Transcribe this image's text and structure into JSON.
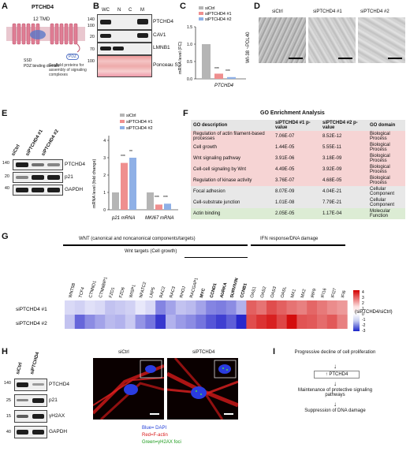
{
  "panels": {
    "A": {
      "letter": "A",
      "protein": "PTCHD4",
      "tmd": "12 TMD",
      "domain1": "SSD",
      "domain2": "PDZ binding domain",
      "pdz": "PDZ",
      "note": "Scaffold proteins for assembly of signaling complexes"
    },
    "B": {
      "letter": "B",
      "columns": [
        "WC",
        "N",
        "C",
        "M"
      ],
      "rows": [
        "PTCHD4",
        "CAV1",
        "LMNB1",
        "Ponceau S"
      ],
      "mw_markers": [
        "140",
        "100",
        "20",
        "70",
        "100"
      ]
    },
    "C": {
      "letter": "C",
      "legend": [
        "siCtrl",
        "siPTCHD4 #1",
        "siPTCHD4 #2"
      ],
      "ylabel": "mRNA level (FC)",
      "xlabel": "PTCHD4",
      "yticks": [
        "0.0",
        "0.5",
        "1.0",
        "1.5"
      ],
      "sig1": "***",
      "sig2": "***"
    },
    "D": {
      "letter": "D",
      "side_label": "WI-38 ~PDL40",
      "images": [
        "siCtrl",
        "siPTCHD4 #1",
        "siPTCHD4 #2"
      ]
    },
    "E": {
      "letter": "E",
      "lanes": [
        "siCtrl",
        "siPTCHD4 #1",
        "siPTCHD4 #2"
      ],
      "rows": [
        "PTCHD4",
        "p21",
        "GAPDH"
      ],
      "mw_markers": [
        "140",
        "20",
        "40"
      ],
      "legend": [
        "siCtrl",
        "siPTCHD4 #1",
        "siPTCHD4 #2"
      ],
      "ylabel": "mRNA level (fold change)",
      "yticks": [
        "0",
        "1",
        "2",
        "3",
        "4"
      ],
      "groups": [
        "p21 mRNA",
        "MKI67 mRNA"
      ],
      "sig": [
        "***",
        "**",
        "***",
        "***"
      ]
    },
    "F": {
      "letter": "F",
      "title": "GO Enrichment Analysis",
      "headers": [
        "GO description",
        "siPTCHD4 #1 p-value",
        "siPTCHD4 #2 p-value",
        "GO domain"
      ],
      "rows": [
        [
          "Regulation of actin filament-based processes",
          "7.06E-07",
          "8.52E-12",
          "Biological Process"
        ],
        [
          "Cell growth",
          "1.44E-05",
          "5.55E-11",
          "Biological Process"
        ],
        [
          "Wnt signaling pathway",
          "3.91E-06",
          "3.18E-09",
          "Biological Process"
        ],
        [
          "Cell-cell signaling by Wnt",
          "4.49E-05",
          "3.92E-09",
          "Biological Process"
        ],
        [
          "Regulation of kinase activity",
          "3.76E-07",
          "4.68E-05",
          "Biological Process"
        ],
        [
          "Focal adhesion",
          "8.07E-09",
          "4.04E-21",
          "Cellular Component"
        ],
        [
          "Cell-substrate junction",
          "1.01E-08",
          "7.79E-21",
          "Cellular Component"
        ],
        [
          "Actin binding",
          "2.05E-05",
          "1.17E-04",
          "Molecular Function"
        ]
      ],
      "row_colors": [
        "#f6d4d4",
        "#f6d4d4",
        "#f6d4d4",
        "#f6d4d4",
        "#f6d4d4",
        "#e8e8e8",
        "#e8e8e8",
        "#dcecd4"
      ]
    },
    "G": {
      "letter": "G",
      "header_wnt": "WNT (canonical and noncanonical components/targets)",
      "header_ifn": "IFN response/DNA damage",
      "subheader": "Wnt targets (Cell growth)",
      "genes": [
        "WNT5B",
        "TCF4",
        "CTNND1",
        "CTNNBIP1",
        "FZD1",
        "FZD6",
        "WISP1",
        "NFATC2",
        "LRP5",
        "RAC2",
        "RAC3",
        "RHOJ",
        "RACGAP1",
        "MYC",
        "CCND1",
        "AURKA",
        "SURVIVIN",
        "CCNB1",
        "OAS1",
        "OAS2",
        "OAS3",
        "OASL",
        "MX1",
        "MX2",
        "IRF9",
        "IFI16",
        "IFI27",
        "IFI6"
      ],
      "bold_genes": [
        "MYC",
        "CCND1",
        "AURKA",
        "SURVIVIN",
        "CCNB1"
      ],
      "rows": [
        "siPTCHD4 #1",
        "siPTCHD4 #2"
      ],
      "colorbar_ticks": [
        "4",
        "3",
        "2",
        "1",
        "0",
        "-1",
        "-2",
        "-3"
      ],
      "colorbar_label": "(siPTCHD4/siCtrl)"
    },
    "H": {
      "letter": "H",
      "lanes": [
        "siCtrl",
        "siPTCHD4"
      ],
      "rows": [
        "PTCHD4",
        "p21",
        "γH2AX",
        "GAPDH"
      ],
      "mw_markers": [
        "140",
        "25",
        "15",
        "40"
      ],
      "images": [
        "siCtrl",
        "siPTCHD4"
      ],
      "legend": [
        {
          "text": "Blue= DAPI",
          "color": "#2340d8"
        },
        {
          "text": "Red=F-actin",
          "color": "#d81b1b"
        },
        {
          "text": "Green=γH2AX foci",
          "color": "#1a9a1a"
        }
      ]
    },
    "I": {
      "letter": "I",
      "step1": "Progressive decline of cell proliferation",
      "step2": "↑ PTCHD4",
      "step3": "Maintenance of protective signaling pathways",
      "step4": "Suppression of DNA damage"
    }
  },
  "chart_data": [
    {
      "type": "bar",
      "panel": "C",
      "categories": [
        "PTCHD4"
      ],
      "series": [
        {
          "name": "siCtrl",
          "values": [
            1.0
          ]
        },
        {
          "name": "siPTCHD4 #1",
          "values": [
            0.15
          ]
        },
        {
          "name": "siPTCHD4 #2",
          "values": [
            0.05
          ]
        }
      ],
      "colors": [
        "#b5b5b5",
        "#ef8f8f",
        "#8fb0e6"
      ],
      "xlabel": "PTCHD4",
      "ylabel": "mRNA level (FC)",
      "ylim": [
        0,
        1.5
      ]
    },
    {
      "type": "bar",
      "panel": "E",
      "categories": [
        "p21 mRNA",
        "MKI67 mRNA"
      ],
      "series": [
        {
          "name": "siCtrl",
          "values": [
            1.0,
            1.0
          ]
        },
        {
          "name": "siPTCHD4 #1",
          "values": [
            2.7,
            0.3
          ]
        },
        {
          "name": "siPTCHD4 #2",
          "values": [
            3.0,
            0.35
          ]
        }
      ],
      "colors": [
        "#b5b5b5",
        "#ef8f8f",
        "#8fb0e6"
      ],
      "ylabel": "mRNA level (fold change)",
      "ylim": [
        0,
        4
      ]
    },
    {
      "type": "heatmap",
      "panel": "G",
      "x": [
        "WNT5B",
        "TCF4",
        "CTNND1",
        "CTNNBIP1",
        "FZD1",
        "FZD6",
        "WISP1",
        "NFATC2",
        "LRP5",
        "RAC2",
        "RAC3",
        "RHOJ",
        "RACGAP1",
        "MYC",
        "CCND1",
        "AURKA",
        "SURVIVIN",
        "CCNB1",
        "OAS1",
        "OAS2",
        "OAS3",
        "OASL",
        "MX1",
        "MX2",
        "IRF9",
        "IFI16",
        "IFI27",
        "IFI6"
      ],
      "y": [
        "siPTCHD4 #1",
        "siPTCHD4 #2"
      ],
      "values": [
        [
          -0.5,
          -0.6,
          -0.4,
          -0.5,
          -0.8,
          -0.7,
          -0.6,
          -0.3,
          -0.5,
          -1.6,
          -1.2,
          -0.8,
          -0.9,
          -1.2,
          -1.6,
          -1.7,
          -1.5,
          -1.0,
          2.5,
          2.2,
          2.8,
          2.5,
          2.2,
          2.0,
          2.4,
          2.1,
          1.8,
          1.6
        ],
        [
          -0.8,
          -2.0,
          -1.5,
          -1.2,
          -0.9,
          -1.0,
          -0.7,
          -1.4,
          -1.8,
          -2.6,
          -1.0,
          -1.3,
          -1.5,
          -1.8,
          -2.2,
          -2.5,
          -2.1,
          -2.8,
          2.8,
          3.2,
          3.5,
          2.9,
          3.8,
          2.7,
          2.6,
          2.3,
          2.6,
          2.0
        ]
      ],
      "range": [
        -3,
        4
      ]
    }
  ]
}
